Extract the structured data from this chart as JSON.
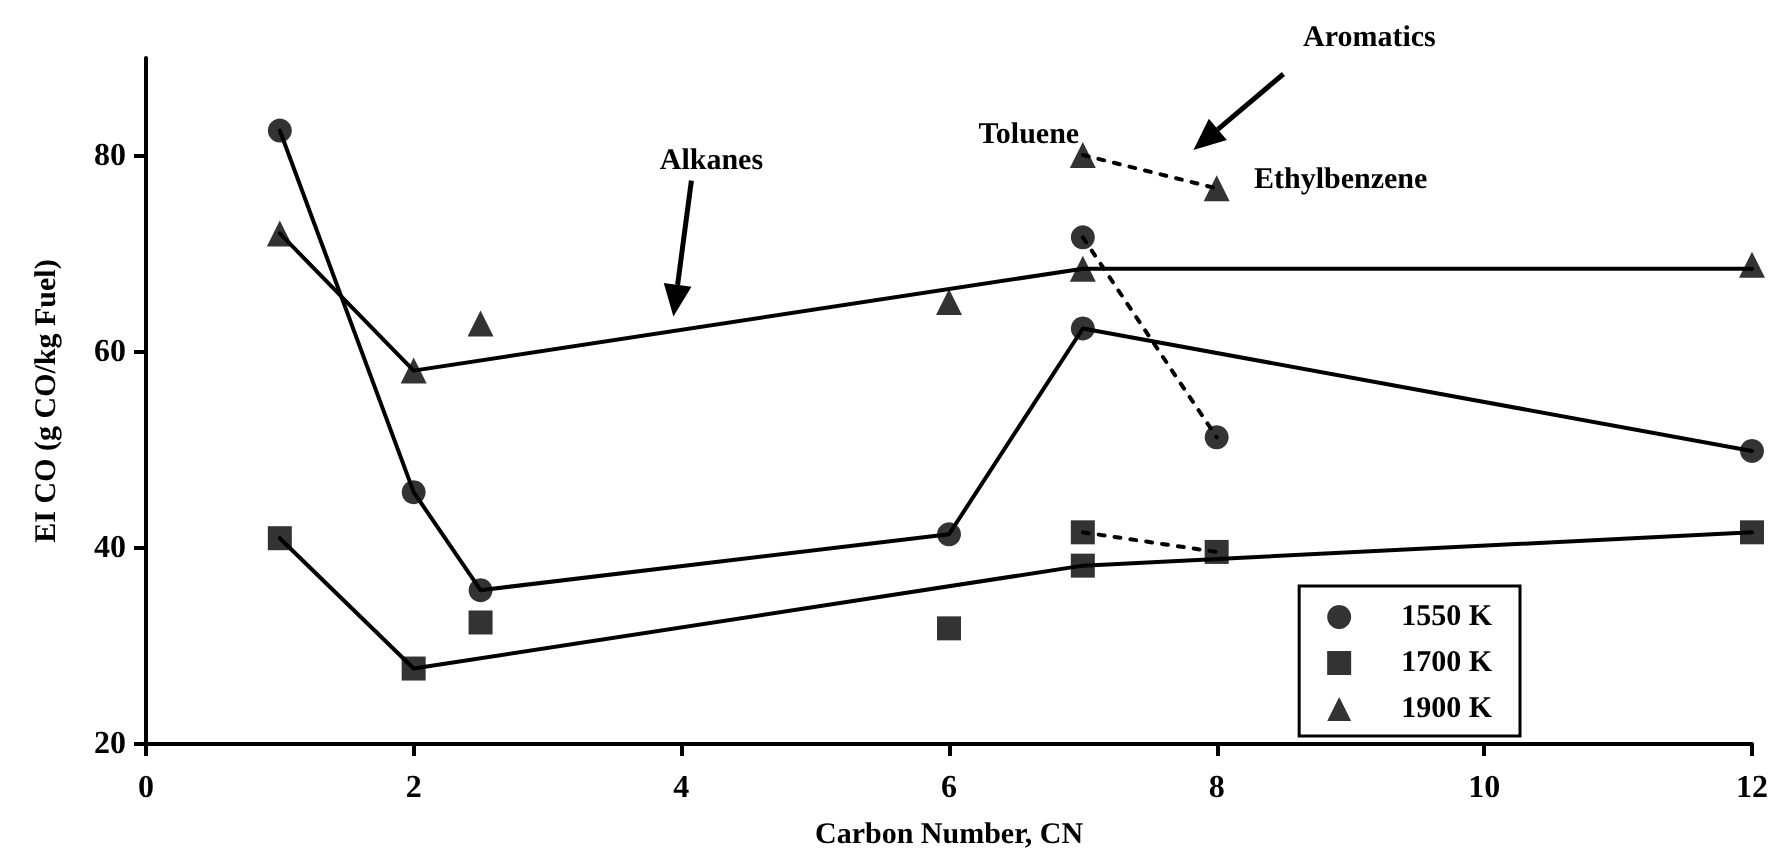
{
  "chart_data": {
    "type": "scatter",
    "xlabel": "Carbon Number, CN",
    "ylabel": "EI CO (g CO/kg Fuel)",
    "xlim": [
      0,
      12
    ],
    "xticks": [
      0,
      2,
      4,
      6,
      8,
      10,
      12
    ],
    "ylim": [
      20,
      90
    ],
    "yticks": [
      20,
      40,
      60,
      80
    ],
    "legend": "bottom right",
    "series": [
      {
        "type": "line",
        "color": "#000000",
        "marker": "none",
        "line_style": "solid",
        "x": [
          1,
          2,
          2.5,
          6,
          7,
          12
        ],
        "values": [
          82.6,
          45.7,
          35.7,
          41.4,
          62.4,
          49.9
        ]
      },
      {
        "type": "line",
        "color": "#000000",
        "marker": "none",
        "line_style": "dotted",
        "x": [
          7,
          8
        ],
        "values": [
          71.7,
          51.3
        ]
      },
      {
        "type": "line",
        "color": "#000000",
        "marker": "none",
        "line_style": "solid",
        "x": [
          1,
          2,
          7,
          12
        ],
        "values": [
          41,
          27.7,
          38.2,
          41.6
        ]
      },
      {
        "type": "line",
        "color": "#000000",
        "marker": "none",
        "line_style": "dotted",
        "x": [
          7,
          8
        ],
        "values": [
          41.6,
          39.6
        ]
      },
      {
        "type": "line",
        "color": "#000000",
        "marker": "none",
        "line_style": "solid",
        "x": [
          1,
          2,
          7,
          12
        ],
        "values": [
          72.1,
          58.1,
          68.5,
          68.5
        ]
      },
      {
        "type": "line",
        "color": "#000000",
        "marker": "none",
        "line_style": "dotted",
        "x": [
          7,
          8
        ],
        "values": [
          80.1,
          76.7
        ]
      },
      {
        "name": "1550 K",
        "color": "#000000",
        "marker": "circle",
        "x": [
          1,
          2,
          2.5,
          6,
          7,
          7,
          8,
          12
        ],
        "values": [
          82.6,
          45.7,
          35.7,
          41.4,
          71.7,
          62.4,
          51.3,
          49.9
        ]
      },
      {
        "name": "1700 K",
        "color": "#000000",
        "marker": "square",
        "x": [
          1,
          2,
          2.5,
          6,
          7,
          7,
          8,
          12
        ],
        "values": [
          41,
          27.7,
          32.4,
          31.8,
          41.6,
          38.2,
          39.6,
          41.6
        ]
      },
      {
        "name": "1900 K",
        "color": "#000000",
        "marker": "triangle",
        "x": [
          1,
          2,
          2.5,
          6,
          7,
          7,
          8,
          12
        ],
        "values": [
          72.1,
          58.1,
          62.9,
          65.1,
          80.1,
          68.5,
          76.7,
          68.9
        ]
      }
    ],
    "annotations": [
      "Alkanes",
      "Aromatics",
      {
        "text": "Toluene",
        "x": 7,
        "y": 80.1
      },
      {
        "text": "Ethylbenzene",
        "x": 8,
        "y": 76.7
      }
    ]
  }
}
